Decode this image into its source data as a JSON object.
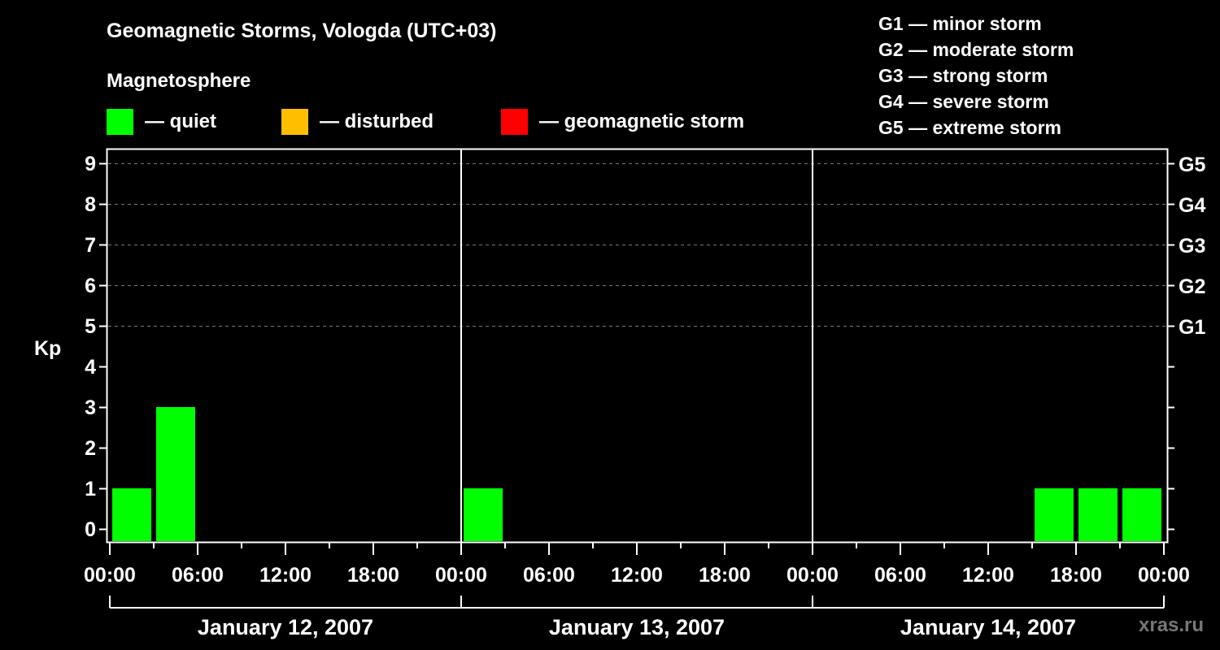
{
  "header": {
    "title": "Geomagnetic Storms, Vologda (UTC+03)",
    "subtitle": "Magnetosphere"
  },
  "legend": [
    {
      "color": "#00ff00",
      "label": "— quiet"
    },
    {
      "color": "#ffbf00",
      "label": "— disturbed"
    },
    {
      "color": "#ff0000",
      "label": "— geomagnetic storm"
    }
  ],
  "g_scale_legend": [
    "G1 — minor storm",
    "G2 — moderate storm",
    "G3 — strong storm",
    "G4 — severe storm",
    "G5 — extreme storm"
  ],
  "watermark": "xras.ru",
  "chart_data": {
    "type": "bar",
    "title": "Geomagnetic Storms, Vologda (UTC+03)",
    "ylabel": "Kp",
    "xlabel": "",
    "ylim": [
      0,
      9
    ],
    "y_ticks": [
      0,
      1,
      2,
      3,
      4,
      5,
      6,
      7,
      8,
      9
    ],
    "right_axis_labels": [
      {
        "kp": 5,
        "label": "G1"
      },
      {
        "kp": 6,
        "label": "G2"
      },
      {
        "kp": 7,
        "label": "G3"
      },
      {
        "kp": 8,
        "label": "G4"
      },
      {
        "kp": 9,
        "label": "G5"
      }
    ],
    "grid": "dashed horizontal lines at Kp 5-9",
    "x_tick_labels": [
      "00:00",
      "06:00",
      "12:00",
      "18:00",
      "00:00",
      "06:00",
      "12:00",
      "18:00",
      "00:00",
      "06:00",
      "12:00",
      "18:00",
      "00:00"
    ],
    "days": [
      "January 12, 2007",
      "January 13, 2007",
      "January 14, 2007"
    ],
    "interval_hours": 3,
    "categories": [
      "01-12 00:00",
      "01-12 03:00",
      "01-12 06:00",
      "01-12 09:00",
      "01-12 12:00",
      "01-12 15:00",
      "01-12 18:00",
      "01-12 21:00",
      "01-13 00:00",
      "01-13 03:00",
      "01-13 06:00",
      "01-13 09:00",
      "01-13 12:00",
      "01-13 15:00",
      "01-13 18:00",
      "01-13 21:00",
      "01-14 00:00",
      "01-14 03:00",
      "01-14 06:00",
      "01-14 09:00",
      "01-14 12:00",
      "01-14 15:00",
      "01-14 18:00",
      "01-14 21:00"
    ],
    "values": [
      1,
      3,
      0,
      0,
      0,
      0,
      0,
      0,
      1,
      0,
      0,
      0,
      0,
      0,
      0,
      0,
      0,
      0,
      0,
      0,
      0,
      1,
      1,
      1
    ],
    "bar_color": "#00ff00",
    "legend_position": "top"
  }
}
